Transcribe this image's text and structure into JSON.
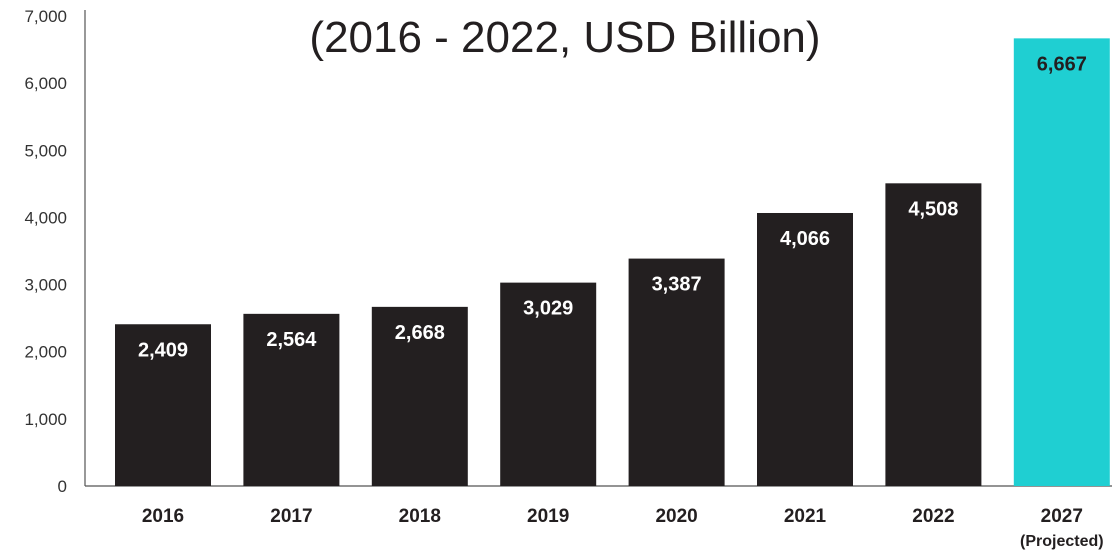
{
  "chart_data": {
    "type": "bar",
    "title": "(2016 - 2022, USD Billion)",
    "categories": [
      "2016",
      "2017",
      "2018",
      "2019",
      "2020",
      "2021",
      "2022",
      "2027"
    ],
    "category_sublabels": [
      "",
      "",
      "",
      "",
      "",
      "",
      "",
      "(Projected)"
    ],
    "values": [
      2409,
      2564,
      2668,
      3029,
      3387,
      4066,
      4508,
      6667
    ],
    "data_labels": [
      "2,409",
      "2,564",
      "2,668",
      "3,029",
      "3,387",
      "4,066",
      "4,508",
      "6,667"
    ],
    "yticks": [
      0,
      1000,
      2000,
      3000,
      4000,
      5000,
      6000,
      7000
    ],
    "ytick_labels": [
      "0",
      "1,000",
      "2,000",
      "3,000",
      "4,000",
      "5,000",
      "6,000",
      "7,000"
    ],
    "ylim": [
      0,
      7000
    ],
    "xlabel": "",
    "ylabel": "",
    "grid": false,
    "legend": "none",
    "colors": {
      "bar": "#231f20",
      "projected_bar": "#1fcfd2",
      "label_on_dark": "#ffffff",
      "label_on_projected": "#231f20",
      "axis": "#555555"
    }
  }
}
